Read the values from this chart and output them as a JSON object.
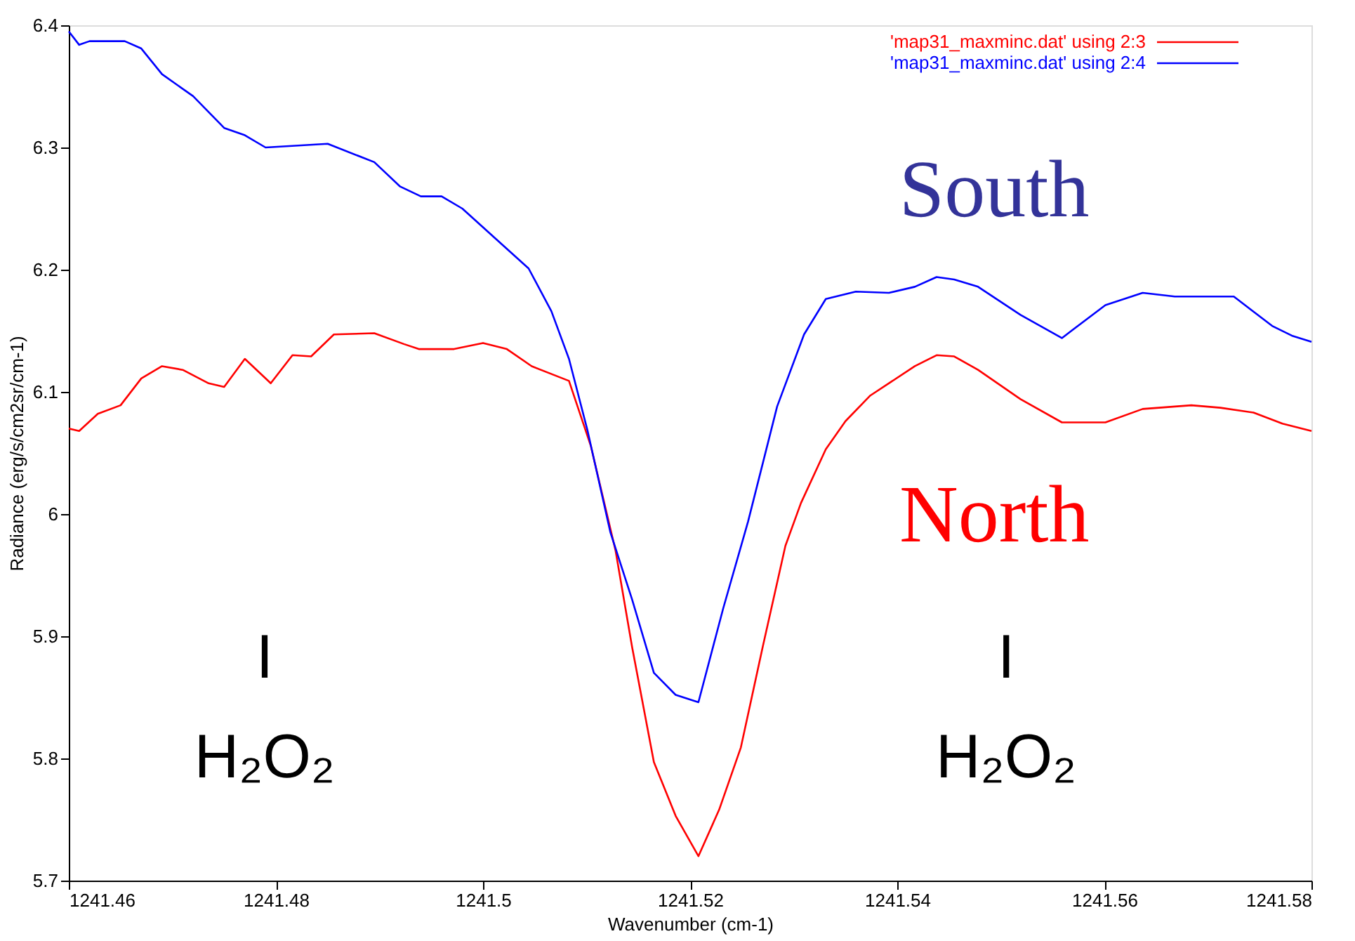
{
  "chart_data": {
    "type": "line",
    "xlabel": "Wavenumber (cm-1)",
    "ylabel": "Radiance (erg/s/cm2sr/cm-1)",
    "xlim": [
      1241.46,
      1241.58
    ],
    "xticks": [
      1241.46,
      1241.48,
      1241.5,
      1241.52,
      1241.54,
      1241.56,
      1241.58
    ],
    "ylim": [
      5.7,
      6.4
    ],
    "yticks": [
      5.7,
      5.8,
      5.9,
      6,
      6.1,
      6.2,
      6.3,
      6.4
    ],
    "grid": false,
    "legend": "top right",
    "marker": "none",
    "line_style": "solid",
    "series": [
      {
        "name": "'map31_maxminc.dat' using 2:3",
        "color": "#ff0000",
        "x": [
          1241.46,
          1241.461,
          1241.4628,
          1241.465,
          1241.467,
          1241.469,
          1241.471,
          1241.4735,
          1241.475,
          1241.477,
          1241.4795,
          1241.4816,
          1241.4834,
          1241.4856,
          1241.4895,
          1241.4924,
          1241.4938,
          1241.4972,
          1241.5,
          1241.5023,
          1241.5047,
          1241.5083,
          1241.5104,
          1241.5128,
          1241.5144,
          1241.5165,
          1241.5186,
          1241.5208,
          1241.5228,
          1241.5249,
          1241.527,
          1241.5292,
          1241.5307,
          1241.5331,
          1241.535,
          1241.5374,
          1241.5417,
          1241.5438,
          1241.5455,
          1241.5478,
          1241.5519,
          1241.5559,
          1241.5601,
          1241.5637,
          1241.5684,
          1241.5712,
          1241.5744,
          1241.5772,
          1241.58
        ],
        "values": [
          6.07,
          6.068,
          6.082,
          6.089,
          6.111,
          6.121,
          6.118,
          6.107,
          6.104,
          6.127,
          6.107,
          6.13,
          6.129,
          6.147,
          6.148,
          6.139,
          6.135,
          6.135,
          6.14,
          6.135,
          6.121,
          6.109,
          6.056,
          5.97,
          5.891,
          5.797,
          5.753,
          5.72,
          5.758,
          5.809,
          5.891,
          5.974,
          6.009,
          6.053,
          6.076,
          6.097,
          6.121,
          6.13,
          6.129,
          6.118,
          6.094,
          6.075,
          6.075,
          6.086,
          6.089,
          6.087,
          6.083,
          6.074,
          6.068
        ]
      },
      {
        "name": "'map31_maxminc.dat' using 2:4",
        "color": "#0000ff",
        "x": [
          1241.46,
          1241.461,
          1241.462,
          1241.4654,
          1241.467,
          1241.469,
          1241.472,
          1241.475,
          1241.477,
          1241.479,
          1241.485,
          1241.4895,
          1241.492,
          1241.494,
          1241.496,
          1241.498,
          1241.501,
          1241.5044,
          1241.5066,
          1241.5083,
          1241.5101,
          1241.5123,
          1241.5144,
          1241.5165,
          1241.5186,
          1241.5208,
          1241.5232,
          1241.5256,
          1241.5284,
          1241.531,
          1241.5331,
          1241.536,
          1241.5392,
          1241.5417,
          1241.5438,
          1241.5455,
          1241.5478,
          1241.5519,
          1241.5559,
          1241.5601,
          1241.5637,
          1241.5668,
          1241.5705,
          1241.5725,
          1241.5762,
          1241.5781,
          1241.58
        ],
        "values": [
          6.395,
          6.384,
          6.387,
          6.387,
          6.381,
          6.36,
          6.342,
          6.316,
          6.31,
          6.3,
          6.303,
          6.288,
          6.268,
          6.26,
          6.26,
          6.25,
          6.227,
          6.201,
          6.166,
          6.127,
          6.068,
          5.985,
          5.93,
          5.87,
          5.852,
          5.846,
          5.923,
          5.994,
          6.088,
          6.147,
          6.176,
          6.182,
          6.181,
          6.186,
          6.194,
          6.192,
          6.186,
          6.163,
          6.144,
          6.171,
          6.181,
          6.178,
          6.178,
          6.178,
          6.154,
          6.146,
          6.141
        ]
      }
    ],
    "annotations": [
      "South",
      "North",
      "I",
      "H₂O₂",
      "I",
      "H₂O₂"
    ]
  }
}
